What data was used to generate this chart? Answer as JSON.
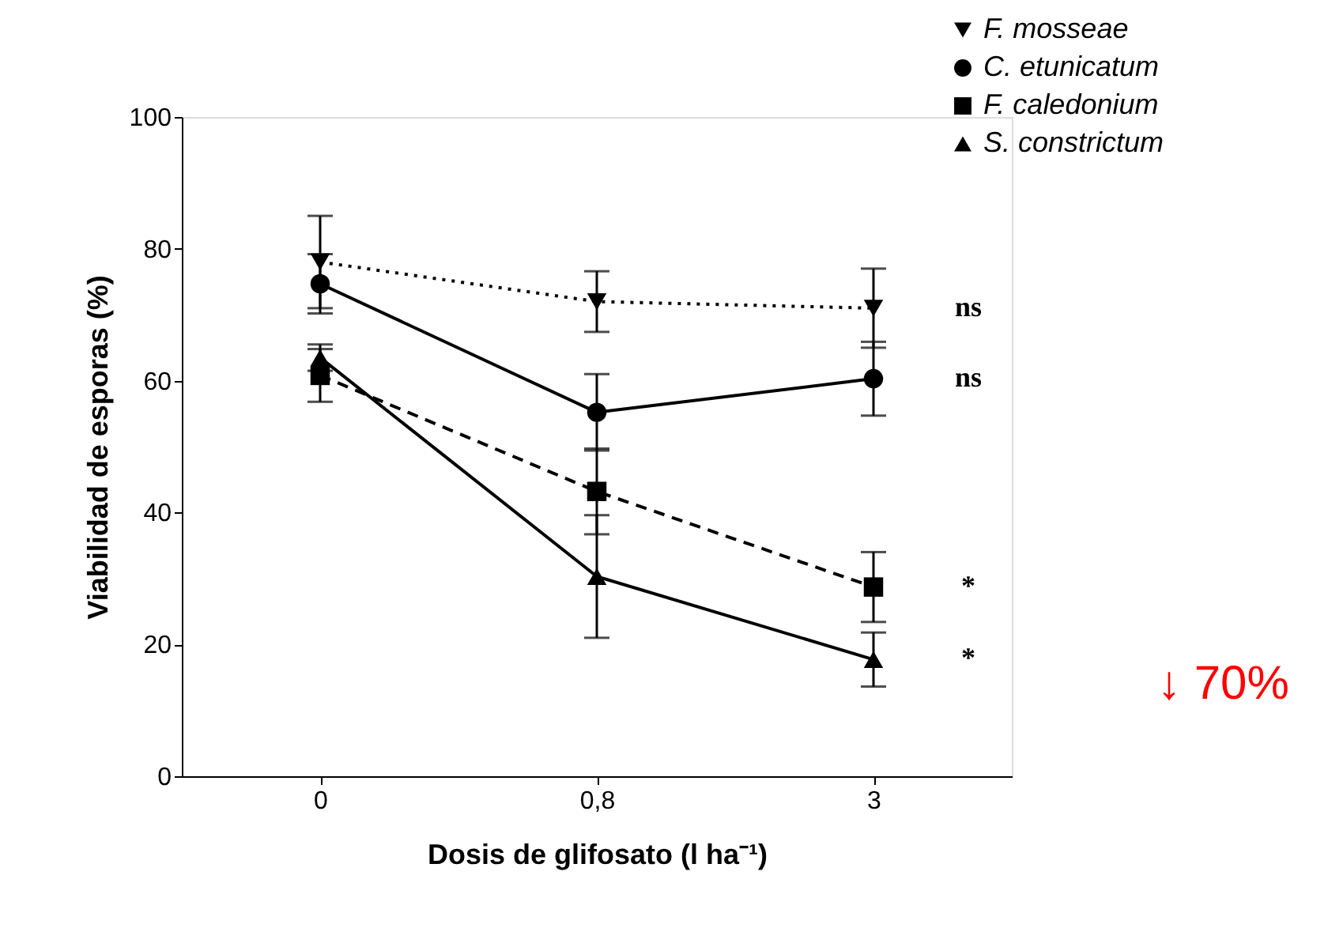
{
  "chart_data": {
    "type": "line",
    "xlabel": "Dosis de glifosato (l ha⁻¹)",
    "ylabel": "Viabilidad de esporas (%)",
    "categories": [
      "0",
      "0,8",
      "3"
    ],
    "ylim": [
      0,
      100
    ],
    "yticks": [
      0,
      20,
      40,
      60,
      80,
      100
    ],
    "grid": false,
    "legend": "top right",
    "series": [
      {
        "name": "F. mosseae",
        "color": "#000000",
        "marker": "triangle-down",
        "line_style": "dotted",
        "values": [
          78,
          72,
          71
        ],
        "errors": [
          7,
          4.6,
          6
        ]
      },
      {
        "name": "C. etunicatum",
        "color": "#000000",
        "marker": "circle",
        "line_style": "solid",
        "values": [
          74.7,
          55.2,
          60.3
        ],
        "errors": [
          4.5,
          5.8,
          5.6
        ]
      },
      {
        "name": "F. caledonium",
        "color": "#000000",
        "marker": "square",
        "line_style": "dashed",
        "values": [
          60.8,
          43.2,
          28.7
        ],
        "errors": [
          4,
          6.5,
          5.3
        ]
      },
      {
        "name": "S. constrictum",
        "color": "#000000",
        "marker": "triangle",
        "line_style": "solid",
        "values": [
          63.5,
          30.3,
          17.7
        ],
        "errors": [
          2,
          9.3,
          4.1
        ]
      }
    ],
    "annotations": [
      "ns",
      "ns",
      "*",
      "*",
      "↓ 70%"
    ]
  }
}
